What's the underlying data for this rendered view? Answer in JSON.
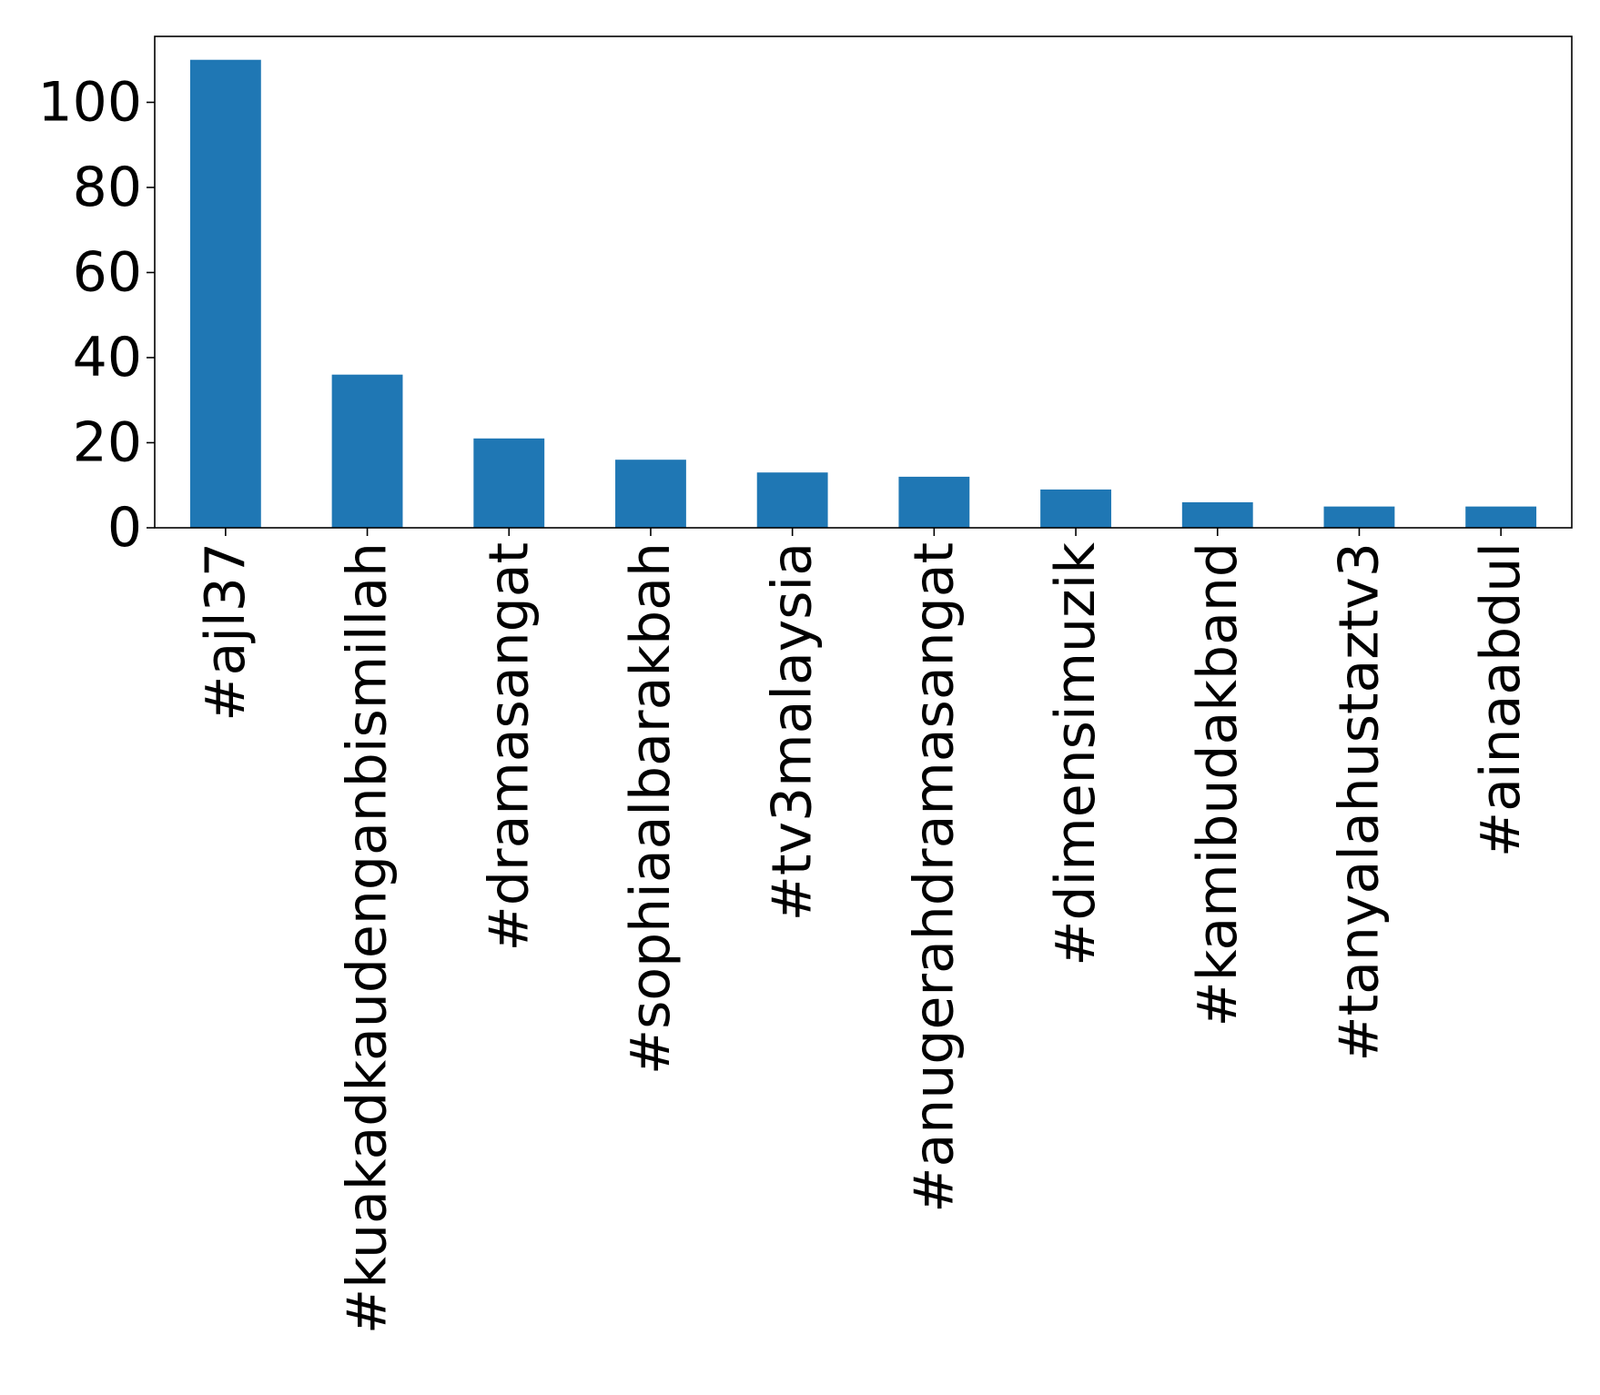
{
  "chart_data": {
    "type": "bar",
    "title": "",
    "xlabel": "",
    "ylabel": "",
    "categories": [
      "#ajl37",
      "#kuakadkaudenganbismillah",
      "#dramasangat",
      "#sophiaalbarakbah",
      "#tv3malaysia",
      "#anugerahdramasangat",
      "#dimensimuzik",
      "#kamibudakband",
      "#tanyalahustaztv3",
      "#ainaabdul"
    ],
    "values": [
      110,
      36,
      21,
      16,
      13,
      12,
      9,
      6,
      5,
      5
    ],
    "ylim": [
      0,
      115.5
    ],
    "yticks": [
      0,
      20,
      40,
      60,
      80,
      100
    ],
    "ytick_labels": [
      "0",
      "20",
      "40",
      "60",
      "80",
      "100"
    ],
    "bar_color": "#1f77b4",
    "grid": false,
    "legend": "none"
  }
}
